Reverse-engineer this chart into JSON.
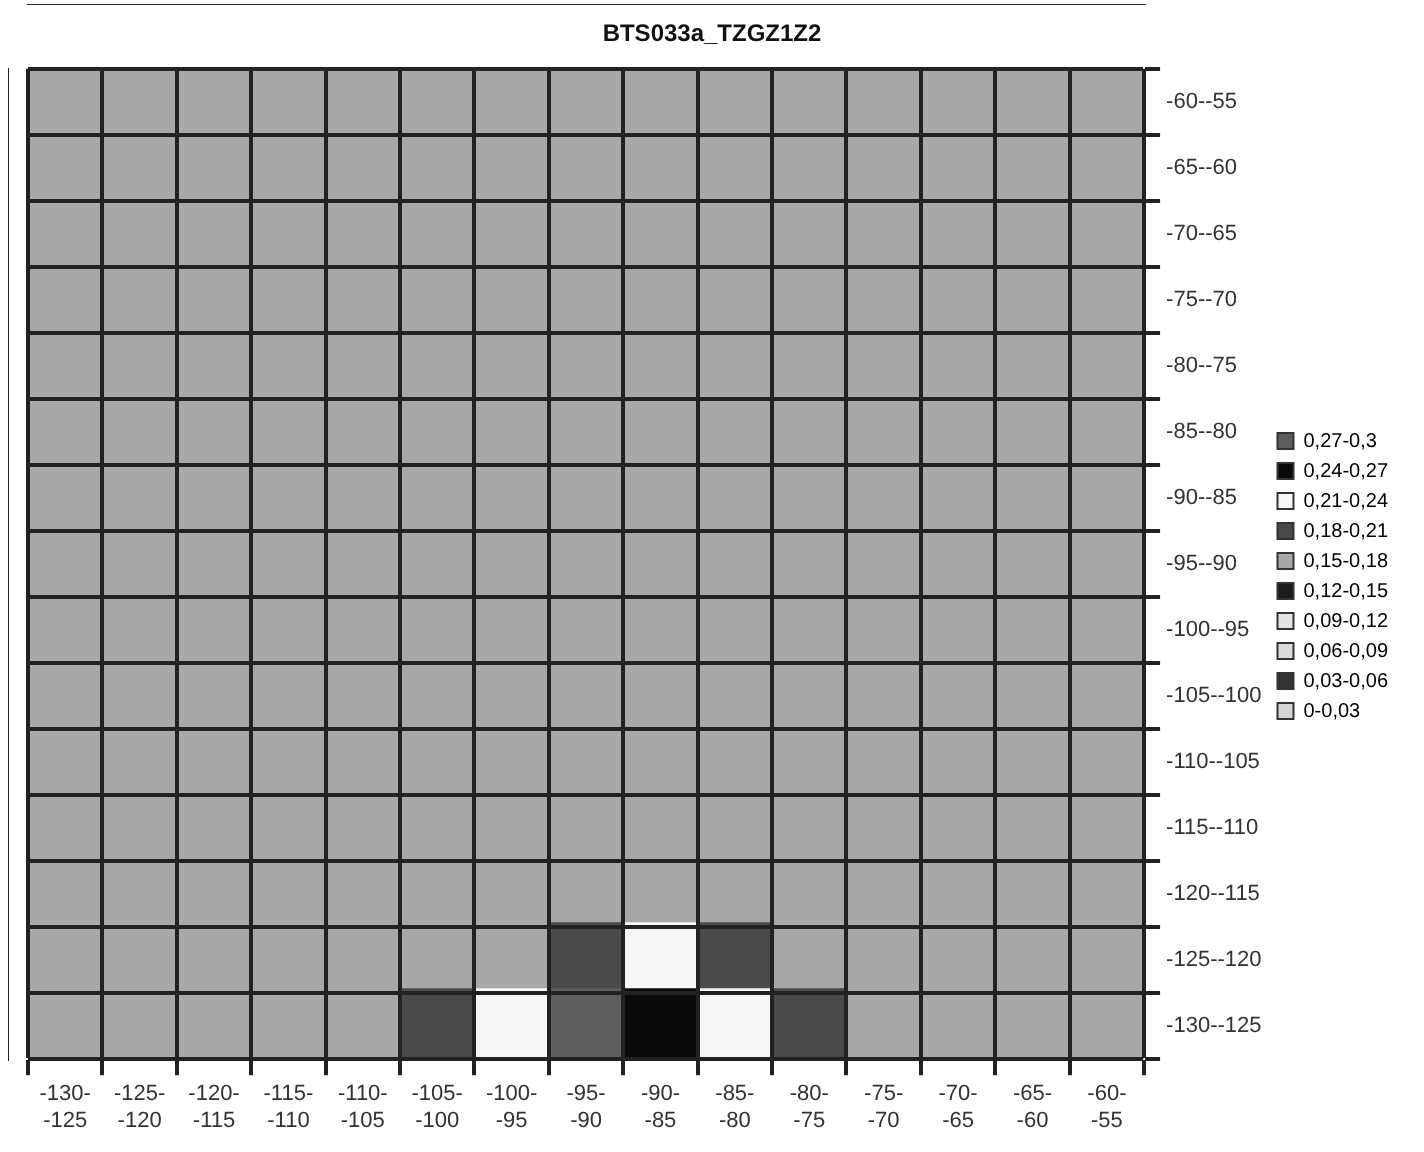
{
  "chart_data": {
    "type": "heatmap",
    "title": "BTS033a_TZGZ1Z2",
    "categories": [
      "-130--125",
      "-125--120",
      "-120--115",
      "-115--110",
      "-110--105",
      "-105--100",
      "-100--95",
      "-95--90",
      "-90--85",
      "-85--80",
      "-80--75",
      "-75--70",
      "-70--65",
      "-65--60",
      "-60--55"
    ],
    "y_categories": [
      "-60--55",
      "-65--60",
      "-70--65",
      "-75--70",
      "-80--75",
      "-85--80",
      "-90--85",
      "-95--90",
      "-100--95",
      "-105--100",
      "-110--105",
      "-115--110",
      "-120--115",
      "-125--120",
      "-130--125"
    ],
    "cells": [
      [
        0.165,
        0.165,
        0.165,
        0.165,
        0.165,
        0.165,
        0.165,
        0.165,
        0.165,
        0.165,
        0.165,
        0.165,
        0.165,
        0.165,
        0.165
      ],
      [
        0.165,
        0.165,
        0.165,
        0.165,
        0.165,
        0.165,
        0.165,
        0.165,
        0.165,
        0.165,
        0.165,
        0.165,
        0.165,
        0.165,
        0.165
      ],
      [
        0.165,
        0.165,
        0.165,
        0.165,
        0.165,
        0.165,
        0.165,
        0.165,
        0.165,
        0.165,
        0.165,
        0.165,
        0.165,
        0.165,
        0.165
      ],
      [
        0.165,
        0.165,
        0.165,
        0.165,
        0.165,
        0.165,
        0.165,
        0.165,
        0.165,
        0.165,
        0.165,
        0.165,
        0.165,
        0.165,
        0.165
      ],
      [
        0.165,
        0.165,
        0.165,
        0.165,
        0.165,
        0.165,
        0.165,
        0.165,
        0.165,
        0.165,
        0.165,
        0.165,
        0.165,
        0.165,
        0.165
      ],
      [
        0.165,
        0.165,
        0.165,
        0.165,
        0.165,
        0.165,
        0.165,
        0.165,
        0.165,
        0.165,
        0.165,
        0.165,
        0.165,
        0.165,
        0.165
      ],
      [
        0.165,
        0.165,
        0.165,
        0.165,
        0.165,
        0.165,
        0.165,
        0.165,
        0.165,
        0.165,
        0.165,
        0.165,
        0.165,
        0.165,
        0.165
      ],
      [
        0.165,
        0.165,
        0.165,
        0.165,
        0.165,
        0.165,
        0.165,
        0.165,
        0.165,
        0.165,
        0.165,
        0.165,
        0.165,
        0.165,
        0.165
      ],
      [
        0.165,
        0.165,
        0.165,
        0.165,
        0.165,
        0.165,
        0.165,
        0.165,
        0.165,
        0.165,
        0.165,
        0.165,
        0.165,
        0.165,
        0.165
      ],
      [
        0.165,
        0.165,
        0.165,
        0.165,
        0.165,
        0.165,
        0.165,
        0.165,
        0.165,
        0.165,
        0.165,
        0.165,
        0.165,
        0.165,
        0.165
      ],
      [
        0.165,
        0.165,
        0.165,
        0.165,
        0.165,
        0.165,
        0.165,
        0.165,
        0.165,
        0.165,
        0.165,
        0.165,
        0.165,
        0.165,
        0.165
      ],
      [
        0.165,
        0.165,
        0.165,
        0.165,
        0.165,
        0.165,
        0.165,
        0.165,
        0.165,
        0.165,
        0.165,
        0.165,
        0.165,
        0.165,
        0.165
      ],
      [
        0.165,
        0.165,
        0.165,
        0.165,
        0.165,
        0.165,
        0.165,
        0.165,
        0.165,
        0.165,
        0.165,
        0.165,
        0.165,
        0.165,
        0.165
      ],
      [
        0.165,
        0.165,
        0.165,
        0.165,
        0.165,
        0.165,
        0.165,
        0.195,
        0.225,
        0.195,
        0.165,
        0.165,
        0.165,
        0.165,
        0.165
      ],
      [
        0.165,
        0.165,
        0.165,
        0.165,
        0.165,
        0.195,
        0.225,
        0.285,
        0.255,
        0.225,
        0.195,
        0.165,
        0.165,
        0.165,
        0.165
      ]
    ],
    "cticks": [
      {
        "value": 0.015,
        "label": "0-0,03"
      },
      {
        "value": 0.045,
        "label": "0,03-0,06"
      },
      {
        "value": 0.075,
        "label": "0,06-0,09"
      },
      {
        "value": 0.105,
        "label": "0,09-0,12"
      },
      {
        "value": 0.135,
        "label": "0,12-0,15"
      },
      {
        "value": 0.165,
        "label": "0,15-0,18"
      },
      {
        "value": 0.195,
        "label": "0,18-0,21"
      },
      {
        "value": 0.225,
        "label": "0,21-0,24"
      },
      {
        "value": 0.255,
        "label": "0,24-0,27"
      },
      {
        "value": 0.285,
        "label": "0,27-0,3"
      }
    ],
    "colors": [
      "#d6d6d6",
      "#333333",
      "#dcdcdc",
      "#e4e4e4",
      "#1c1c1c",
      "#a8a8a8",
      "#4a4a4a",
      "#f6f6f6",
      "#0a0a0a",
      "#5e5e5e"
    ],
    "grid": true
  }
}
